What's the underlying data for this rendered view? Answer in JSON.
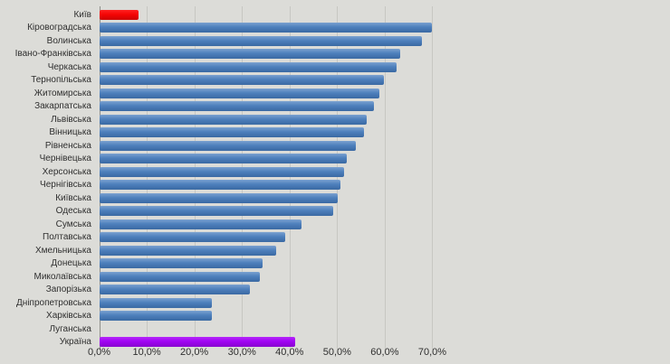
{
  "chart_data": {
    "type": "bar",
    "orientation": "horizontal",
    "title": "",
    "xlabel": "",
    "ylabel": "",
    "xlim": [
      0,
      70
    ],
    "grid": "vertical-major-every-10pct",
    "legend": "none",
    "categories": [
      "Київ",
      "Кіровоградська",
      "Волинська",
      "Івано-Франківська",
      "Черкаська",
      "Тернопільська",
      "Житомирська",
      "Закарпатська",
      "Львівська",
      "Вінницька",
      "Рівненська",
      "Чернівецька",
      "Херсонська",
      "Чернігівська",
      "Київська",
      "Одеська",
      "Сумська",
      "Полтавська",
      "Хмельницька",
      "Донецька",
      "Миколаївська",
      "Запорізька",
      "Дніпропетровська",
      "Харківська",
      "Луганська",
      "Україна"
    ],
    "values": [
      8.1,
      69.8,
      67.8,
      63.2,
      62.3,
      59.8,
      58.7,
      57.6,
      56.2,
      55.6,
      53.9,
      52.0,
      51.4,
      50.5,
      50.0,
      49.0,
      42.5,
      38.9,
      37.1,
      34.3,
      33.7,
      31.5,
      23.5,
      23.5,
      0,
      41.0
    ],
    "x_tick_labels": [
      "0,0%",
      "10,0%",
      "20,0%",
      "30,0%",
      "40,0%",
      "50,0%",
      "60,0%",
      "70,0%"
    ],
    "x_tick_values": [
      0,
      10,
      20,
      30,
      40,
      50,
      60,
      70
    ],
    "highlights": {
      "Київ": "red",
      "Україна": "purple"
    },
    "colors": {
      "background": "#dcdcd8",
      "gridline": "#c7c7c2",
      "axis_line": "#90908b",
      "label_text": "#2f2f2f",
      "bar_default": "#4e80bc",
      "bar_kyiv": "#f50505",
      "bar_ukraine": "#a104f4"
    },
    "bar_styles": {
      "blue": {
        "top": "#7ba1d0",
        "mid": "#4e80bc",
        "bottom": "#3a69a3"
      },
      "red": {
        "top": "#ff2222",
        "mid": "#f50505",
        "bottom": "#cc0303"
      },
      "purple": {
        "top": "#b526fa",
        "mid": "#a104f4",
        "bottom": "#8803cf"
      }
    }
  }
}
